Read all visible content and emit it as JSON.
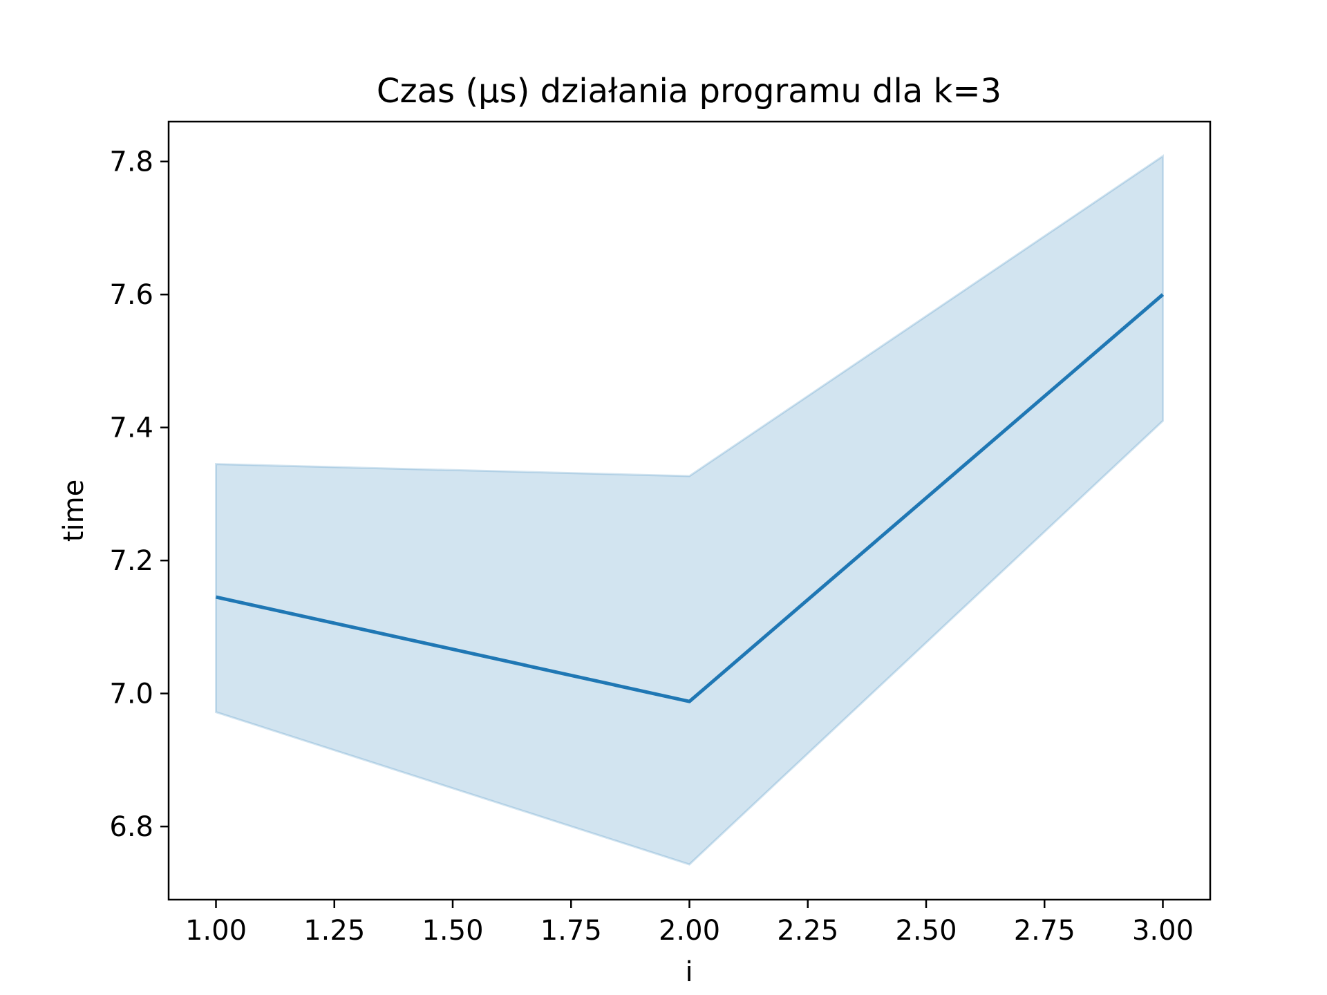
{
  "chart_data": {
    "type": "line",
    "title": "Czas (µs) działania programu dla k=3",
    "xlabel": "i",
    "ylabel": "time",
    "x": [
      1.0,
      2.0,
      3.0
    ],
    "series": [
      {
        "values": [
          7.145,
          6.988,
          7.6
        ],
        "ci_lower": [
          6.972,
          6.743,
          7.41
        ],
        "ci_upper": [
          7.345,
          7.327,
          7.808
        ],
        "color": "#1f77b4"
      }
    ],
    "xlim": [
      0.9,
      3.1
    ],
    "ylim": [
      6.69,
      7.86
    ],
    "xticks": [
      "1.00",
      "1.25",
      "1.50",
      "1.75",
      "2.00",
      "2.25",
      "2.50",
      "2.75",
      "3.00"
    ],
    "yticks": [
      "6.8",
      "7.0",
      "7.2",
      "7.4",
      "7.6",
      "7.8"
    ],
    "grid": false,
    "legend": "none"
  }
}
